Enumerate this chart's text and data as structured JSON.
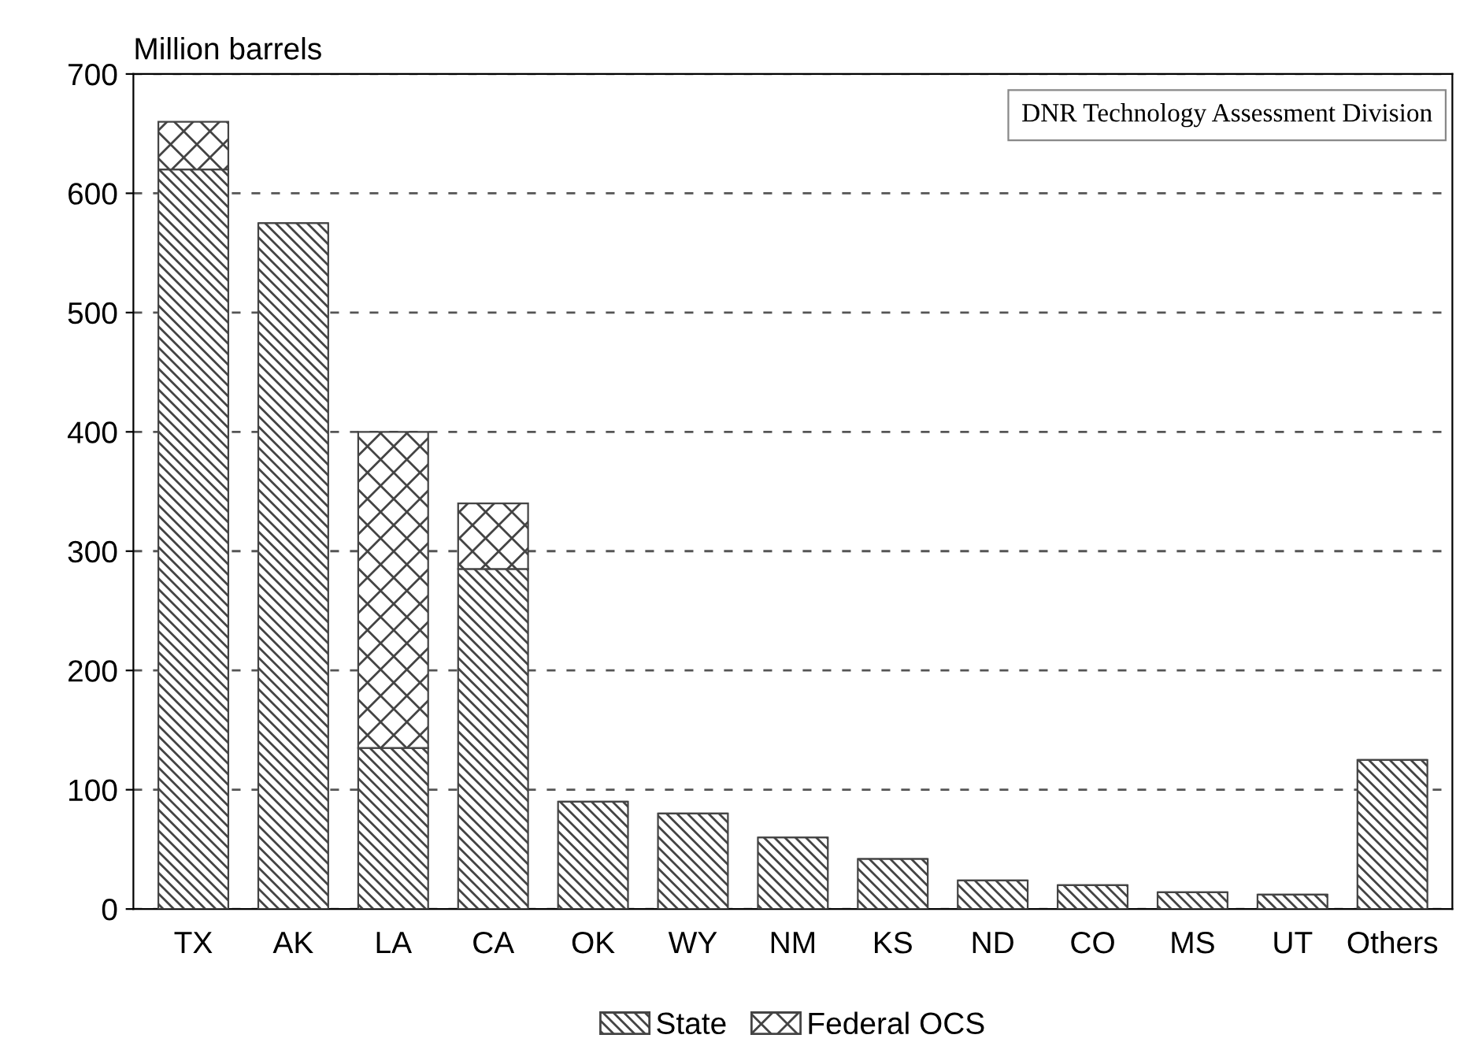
{
  "chart_data": {
    "type": "bar",
    "stacked": true,
    "ylabel": "Million barrels",
    "categories": [
      "TX",
      "AK",
      "LA",
      "CA",
      "OK",
      "WY",
      "NM",
      "KS",
      "ND",
      "CO",
      "MS",
      "UT",
      "Others"
    ],
    "series": [
      {
        "name": "State",
        "color": "#444444",
        "values": [
          620,
          575,
          135,
          285,
          90,
          80,
          60,
          42,
          24,
          20,
          14,
          12,
          125
        ]
      },
      {
        "name": "Federal OCS",
        "color": "#444444",
        "values": [
          40,
          null,
          265,
          55,
          null,
          null,
          null,
          null,
          null,
          null,
          null,
          null,
          null
        ]
      }
    ],
    "ylim": [
      0,
      700
    ],
    "yticks": [
      0,
      100,
      200,
      300,
      400,
      500,
      600,
      700
    ],
    "grid": "y",
    "legend": "bottom",
    "annotations": [
      "DNR Technology Assessment Division"
    ]
  }
}
